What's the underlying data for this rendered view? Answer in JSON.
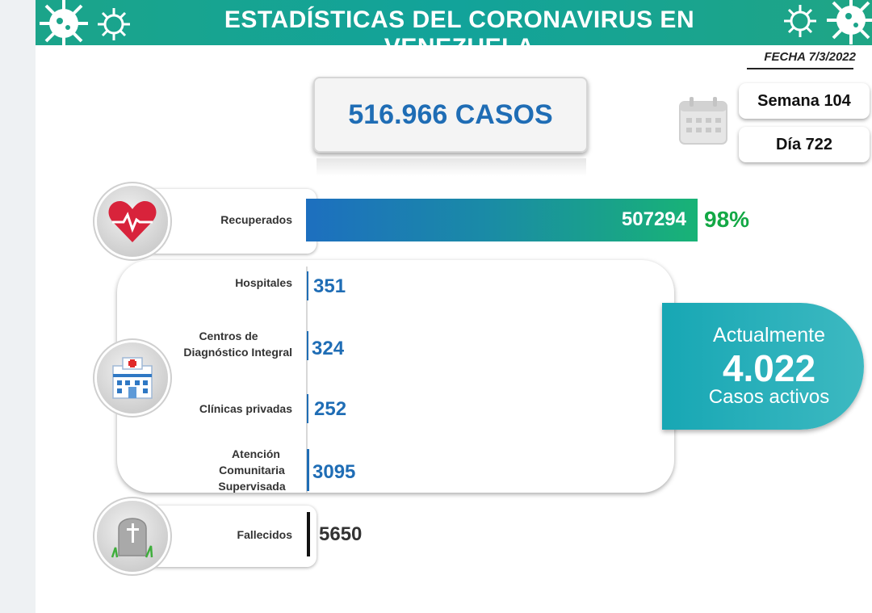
{
  "header": {
    "title": "ESTADÍSTICAS DEL CORONAVIRUS EN VENEZUELA"
  },
  "date": "FECHA 7/3/2022",
  "total_cases": "516.966 CASOS",
  "week": "Semana 104",
  "day": "Día 722",
  "recovered": {
    "label": "Recuperados",
    "value": "507294",
    "percent": "98%"
  },
  "facilities": [
    {
      "label": "Hospitales",
      "value": "351"
    },
    {
      "label": "Centros de Diagnóstico Integral",
      "value": "324"
    },
    {
      "label": "Clínicas privadas",
      "value": "252"
    },
    {
      "label": "Atención Comunitaria Supervisada",
      "value": "3095"
    }
  ],
  "active": {
    "title": "Actualmente",
    "value": "4.022",
    "caption": "Casos activos"
  },
  "deaths": {
    "label": "Fallecidos",
    "value": "5650"
  },
  "colors": {
    "header": "#1ba48a",
    "blue": "#1f6db5",
    "green": "#13a845",
    "teal": "#17a7b4"
  },
  "icons": [
    "virus-icon",
    "calendar-icon",
    "heart-pulse-icon",
    "hospital-icon",
    "tombstone-icon"
  ],
  "chart_data": {
    "type": "bar",
    "categories": [
      "Recuperados",
      "Hospitales",
      "Centros de Diagnóstico Integral",
      "Clínicas privadas",
      "Atención Comunitaria Supervisada",
      "Fallecidos"
    ],
    "values": [
      507294,
      351,
      324,
      252,
      3095,
      5650
    ],
    "title": "ESTADÍSTICAS DEL CORONAVIRUS EN VENEZUELA",
    "total": 516966,
    "active": 4022,
    "recovered_percent": 98
  }
}
